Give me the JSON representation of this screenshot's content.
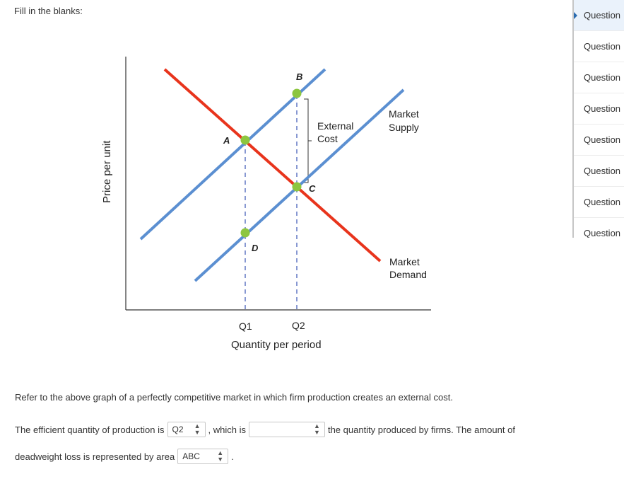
{
  "instructions": "Fill in the blanks:",
  "graph": {
    "y_axis_label": "Price per unit",
    "x_axis_label": "Quantity per period",
    "q1_label": "Q1",
    "q2_label": "Q2",
    "label_a": "A",
    "label_b": "B",
    "label_c": "C",
    "label_d": "D",
    "external_cost_line1": "External",
    "external_cost_line2": "Cost",
    "market_supply_line1": "Market",
    "market_supply_line2": "Supply",
    "market_demand_line1": "Market",
    "market_demand_line2": "Demand",
    "colors": {
      "demand": "#e8341c",
      "supply": "#5b8fd1",
      "points": "#8dc63f",
      "guides": "#3a55b4",
      "axis": "#333333"
    }
  },
  "description": "Refer to the above graph of a perfectly competitive market in which firm production creates an external cost.",
  "question": {
    "text1": "The efficient quantity of production is",
    "dropdown1_value": "Q2",
    "text2": ", which is",
    "dropdown2_value": "",
    "text3": "the quantity produced by firms. The amount of",
    "text4": "deadweight loss is represented by area",
    "dropdown3_value": "ABC",
    "text5": "."
  },
  "sidebar": {
    "items": [
      "Question",
      "Question",
      "Question",
      "Question",
      "Question",
      "Question",
      "Question",
      "Question"
    ],
    "active_index": 0
  }
}
